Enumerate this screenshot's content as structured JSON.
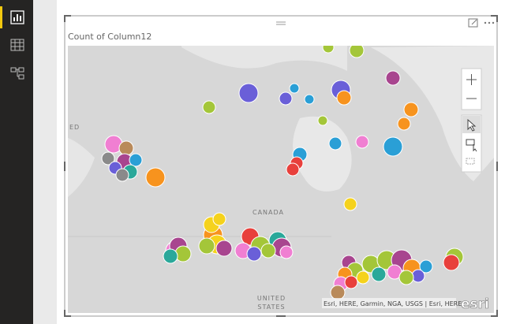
{
  "visual": {
    "title": "Count of Column12"
  },
  "map": {
    "labels": [
      "CANADA",
      "UNITED",
      "STATES",
      "ED"
    ],
    "attribution": "Esri, HERE, Garmin, NGA, USGS | Esri, HERE",
    "logo": "esri"
  }
}
